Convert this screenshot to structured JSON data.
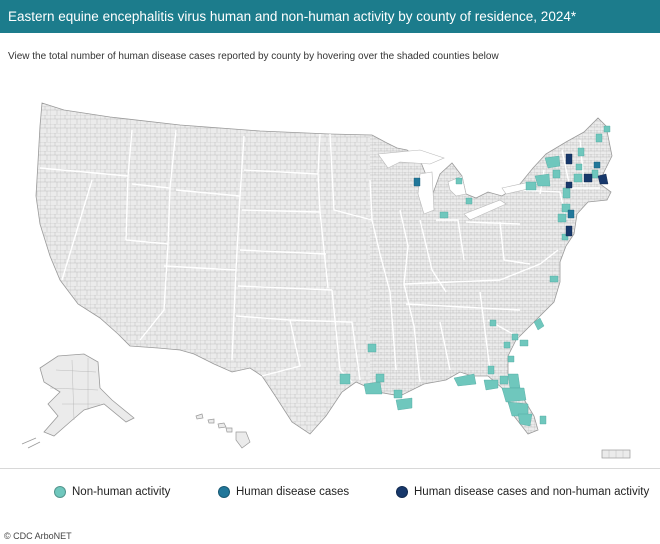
{
  "header": {
    "title": "Eastern equine encephalitis virus human and non-human activity by county of residence, 2024*"
  },
  "subtitle": "View the total number of human disease cases reported by county by hovering over the shaded counties below",
  "colors": {
    "header_bg": "#1c7c8c",
    "map_fill": "#ebebeb",
    "county_line": "#a9a9a9",
    "state_line": "#ffffff",
    "non_human": "#6fc7bd",
    "human": "#21779a",
    "both": "#17386b"
  },
  "legend": {
    "non_human": "Non-human activity",
    "human": "Human disease cases",
    "both": "Human disease cases and non-human activity"
  },
  "credit": "© CDC ArboNET"
}
